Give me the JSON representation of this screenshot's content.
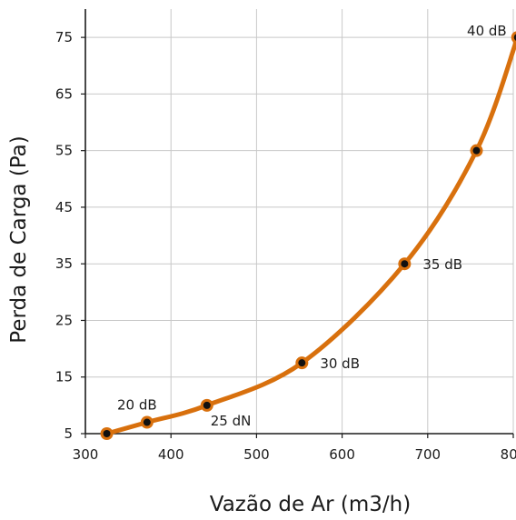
{
  "chart_data": {
    "type": "line",
    "title": "",
    "xlabel": "Vazão de Ar (m3/h)",
    "ylabel": "Perda de Carga (Pa)",
    "xlim": [
      300,
      800
    ],
    "ylim": [
      5,
      80
    ],
    "x_ticks": [
      300,
      400,
      500,
      600,
      700,
      800
    ],
    "y_ticks": [
      5,
      15,
      25,
      35,
      45,
      55,
      65,
      75
    ],
    "grid": true,
    "series": [
      {
        "x": [
          325,
          372,
          442,
          553,
          673,
          757,
          805
        ],
        "y": [
          5,
          7,
          10,
          17.5,
          35,
          55,
          75
        ],
        "color": "#d8700d"
      }
    ],
    "annotations": [
      {
        "text": "20 dB",
        "point": 1,
        "position": "above"
      },
      {
        "text": "25 dN",
        "point": 2,
        "position": "below-right"
      },
      {
        "text": "30 dB",
        "point": 3,
        "position": "right"
      },
      {
        "text": "35 dB",
        "point": 4,
        "position": "right"
      },
      {
        "text": "40 dB",
        "point": 6,
        "position": "left"
      }
    ],
    "colors": {
      "line": "#d8700d",
      "marker_outer": "#d8700d",
      "marker_inner": "#111111",
      "grid": "#c8c8c8",
      "axis": "#1b1b1b",
      "text": "#1b1b1b"
    }
  }
}
